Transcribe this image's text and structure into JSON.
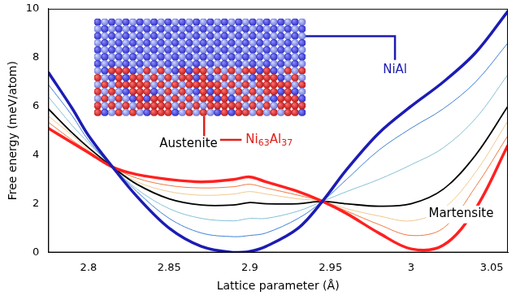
{
  "chart_data": {
    "type": "line",
    "x_label": "Lattice parameter (Å)",
    "y_label": "Free energy (meV/atom)",
    "xlim": [
      2.775,
      3.06
    ],
    "xticks": [
      2.8,
      2.85,
      2.9,
      2.95,
      3,
      3.05
    ],
    "ylim": [
      0,
      10
    ],
    "yticks": [
      0,
      2,
      4,
      6,
      8,
      10
    ],
    "grid": false,
    "marker": "none",
    "line_style": "solid",
    "x": [
      2.775,
      2.79,
      2.8,
      2.815,
      2.83,
      2.85,
      2.87,
      2.89,
      2.9,
      2.91,
      2.93,
      2.945,
      2.96,
      2.98,
      3.0,
      3.02,
      3.04,
      3.06
    ],
    "series": [
      {
        "color": "#1c1cb4",
        "values": [
          7.4,
          5.9,
          4.8,
          3.5,
          2.3,
          1.0,
          0.25,
          0.0,
          0.05,
          0.25,
          1.0,
          2.1,
          3.4,
          4.9,
          6.0,
          7.0,
          8.2,
          9.9
        ]
      },
      {
        "color": "#3f7fd6",
        "values": [
          6.9,
          5.6,
          4.6,
          3.5,
          2.5,
          1.4,
          0.8,
          0.65,
          0.7,
          0.8,
          1.4,
          2.1,
          3.0,
          4.2,
          5.1,
          5.9,
          7.0,
          8.6
        ]
      },
      {
        "color": "#86c0d4",
        "values": [
          6.4,
          5.2,
          4.5,
          3.5,
          2.6,
          1.8,
          1.4,
          1.3,
          1.4,
          1.4,
          1.7,
          2.1,
          2.5,
          3.0,
          3.6,
          4.3,
          5.5,
          7.3
        ]
      },
      {
        "color": "#000000",
        "values": [
          5.9,
          4.9,
          4.3,
          3.5,
          2.8,
          2.2,
          1.95,
          1.95,
          2.05,
          2.0,
          2.0,
          2.1,
          2.0,
          1.9,
          2.0,
          2.6,
          4.0,
          6.0
        ]
      },
      {
        "color": "#f0c890",
        "values": [
          5.6,
          4.8,
          4.2,
          3.5,
          2.9,
          2.5,
          2.35,
          2.4,
          2.5,
          2.4,
          2.2,
          2.1,
          1.8,
          1.5,
          1.3,
          1.8,
          3.3,
          5.4
        ]
      },
      {
        "color": "#f07840",
        "values": [
          5.35,
          4.6,
          4.15,
          3.5,
          3.05,
          2.75,
          2.65,
          2.7,
          2.8,
          2.65,
          2.35,
          2.1,
          1.7,
          1.15,
          0.7,
          1.0,
          2.7,
          4.8
        ]
      },
      {
        "color": "#ff2020",
        "values": [
          5.1,
          4.5,
          4.1,
          3.5,
          3.2,
          3.0,
          2.9,
          3.0,
          3.1,
          2.9,
          2.5,
          2.1,
          1.6,
          0.8,
          0.15,
          0.3,
          1.8,
          4.4
        ]
      }
    ],
    "annotations": [
      {
        "text": "NiAl",
        "x": 2.99,
        "y": 7.5,
        "color": "#1c1cb4"
      },
      {
        "text": "Ni63Al37",
        "x": 2.912,
        "y": 4.62,
        "color": "#e0201a"
      },
      {
        "text": "Austenite",
        "x": 2.862,
        "y": 4.45,
        "color": "#000000"
      },
      {
        "text": "Martensite",
        "x": 3.031,
        "y": 1.6,
        "color": "#000000"
      }
    ]
  }
}
